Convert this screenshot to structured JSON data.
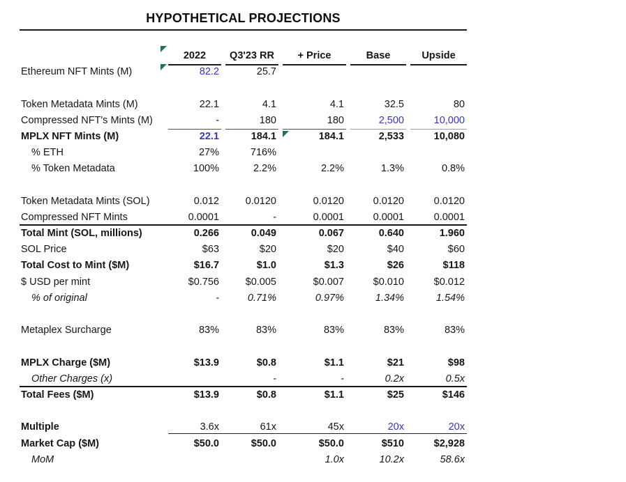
{
  "title": "HYPOTHETICAL PROJECTIONS",
  "colors": {
    "accent_blue": "#3535bd",
    "flag_green": "#227447",
    "rule_black": "#1a1a1a"
  },
  "flag_markers": [
    "left-of-2022-header",
    "left-of-82.2-cell",
    "left-of-184.1-price-cell"
  ],
  "table": {
    "columns": [
      "2022",
      "Q3'23 RR",
      "+ Price",
      "Base",
      "Upside"
    ],
    "rows": [
      {
        "label": "Ethereum NFT Mints (M)",
        "values": [
          "82.2",
          "25.7",
          "",
          "",
          ""
        ],
        "cell_classes": [
          "blue",
          "",
          "",
          "",
          ""
        ]
      },
      {
        "blank": true
      },
      {
        "label": "Token Metadata Mints (M)",
        "values": [
          "22.1",
          "4.1",
          "4.1",
          "32.5",
          "80"
        ]
      },
      {
        "label": "Compressed NFT's Mints (M)",
        "values": [
          "-",
          "180",
          "180",
          "2,500",
          "10,000"
        ],
        "row_class": "sep-cells",
        "cell_classes": [
          "",
          "",
          "",
          "blue bb-lt",
          "blue bb-lt"
        ]
      },
      {
        "label": "MPLX NFT Mints (M)",
        "values": [
          "22.1",
          "184.1",
          "184.1",
          "2,533",
          "10,080"
        ],
        "row_class": "bold-row",
        "cell_classes": [
          "blue",
          "",
          "",
          "",
          ""
        ]
      },
      {
        "label": "% ETH",
        "values": [
          "27%",
          "716%",
          "",
          "",
          ""
        ],
        "label_class": "indent"
      },
      {
        "label": "% Token Metadata",
        "values": [
          "100%",
          "2.2%",
          "2.2%",
          "1.3%",
          "0.8%"
        ],
        "label_class": "indent"
      },
      {
        "blank": true
      },
      {
        "label": "Token Metadata Mints (SOL)",
        "values": [
          "0.012",
          "0.0120",
          "0.0120",
          "0.0120",
          "0.0120"
        ]
      },
      {
        "label": "Compressed NFT Mints",
        "values": [
          "0.0001",
          "-",
          "0.0001",
          "0.0001",
          "0.0001"
        ],
        "row_class": "sep-full"
      },
      {
        "label": "Total Mint (SOL, millions)",
        "values": [
          "0.266",
          "0.049",
          "0.067",
          "0.640",
          "1.960"
        ],
        "row_class": "bold-row"
      },
      {
        "label": "SOL Price",
        "values": [
          "$63",
          "$20",
          "$20",
          "$40",
          "$60"
        ]
      },
      {
        "label": "Total Cost to Mint ($M)",
        "values": [
          "$16.7",
          "$1.0",
          "$1.3",
          "$26",
          "$118"
        ],
        "row_class": "bold-row"
      },
      {
        "label": "$ USD per mint",
        "values": [
          "$0.756",
          "$0.005",
          "$0.007",
          "$0.010",
          "$0.012"
        ]
      },
      {
        "label": "% of original",
        "values": [
          "-",
          "0.71%",
          "0.97%",
          "1.34%",
          "1.54%"
        ],
        "label_class": "indent italic",
        "cell_classes": [
          "italic",
          "italic",
          "italic",
          "italic",
          "italic"
        ]
      },
      {
        "blank": true
      },
      {
        "label": "Metaplex Surcharge",
        "values": [
          "83%",
          "83%",
          "83%",
          "83%",
          "83%"
        ]
      },
      {
        "blank": true
      },
      {
        "label": "MPLX Charge ($M)",
        "values": [
          "$13.9",
          "$0.8",
          "$1.1",
          "$21",
          "$98"
        ],
        "row_class": "bold-row"
      },
      {
        "label": "Other Charges (x)",
        "values": [
          "",
          "-",
          "-",
          "0.2x",
          "0.5x"
        ],
        "row_class": "sep-full",
        "label_class": "indent italic",
        "cell_classes": [
          "italic",
          "italic",
          "italic",
          "italic",
          "italic"
        ]
      },
      {
        "label": "Total Fees ($M)",
        "values": [
          "$13.9",
          "$0.8",
          "$1.1",
          "$25",
          "$146"
        ],
        "row_class": "bold-row"
      },
      {
        "blank": true
      },
      {
        "label": "Multiple",
        "values": [
          "3.6x",
          "61x",
          "45x",
          "20x",
          "20x"
        ],
        "label_class": "bold",
        "cell_classes": [
          "",
          "",
          "",
          "blue",
          "blue"
        ]
      },
      {
        "label": "Market Cap ($M)",
        "values": [
          "$50.0",
          "$50.0",
          "$50.0",
          "$510",
          "$2,928"
        ],
        "row_class": "bold-row"
      },
      {
        "label": "MoM",
        "values": [
          "",
          "",
          "1.0x",
          "10.2x",
          "58.6x"
        ],
        "label_class": "indent italic",
        "cell_classes": [
          "italic",
          "italic",
          "italic",
          "italic",
          "italic"
        ]
      }
    ]
  }
}
